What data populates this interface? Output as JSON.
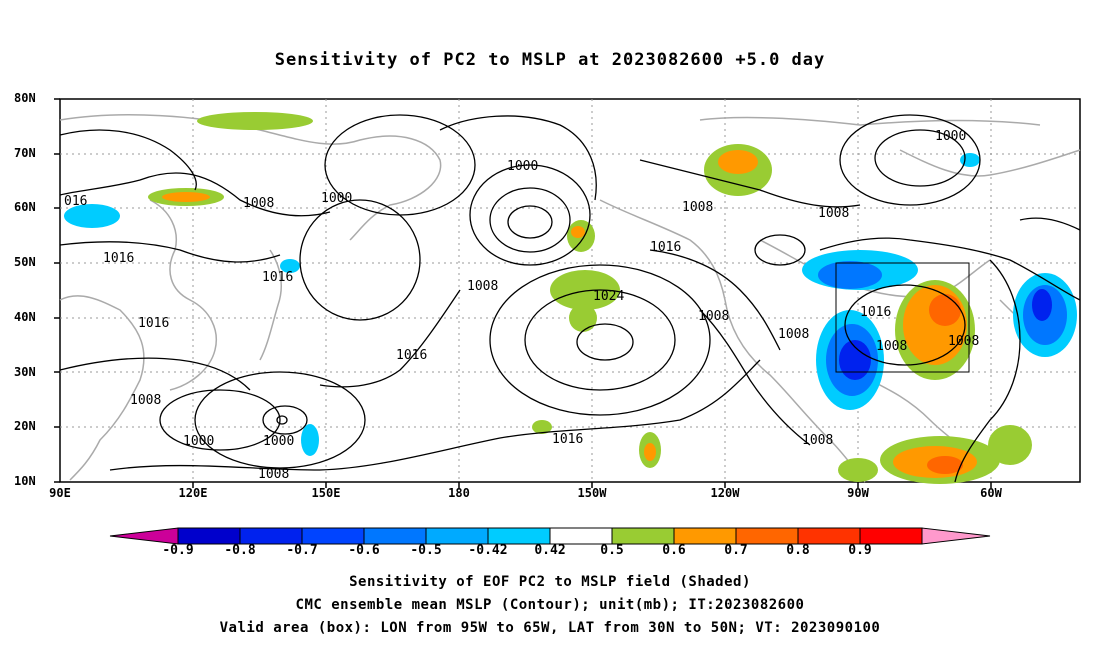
{
  "title": "Sensitivity of PC2 to MSLP at 2023082600 +5.0 day",
  "lat_labels": [
    "80N",
    "70N",
    "60N",
    "50N",
    "40N",
    "30N",
    "20N",
    "10N"
  ],
  "lon_labels": [
    "90E",
    "120E",
    "150E",
    "180",
    "150W",
    "120W",
    "90W",
    "60W"
  ],
  "colorbar": {
    "labels": [
      "-0.9",
      "-0.8",
      "-0.7",
      "-0.6",
      "-0.5",
      "-0.42",
      "0.42",
      "0.5",
      "0.6",
      "0.7",
      "0.8",
      "0.9"
    ],
    "colors": [
      "#cc0099",
      "#0000cc",
      "#0022ee",
      "#0044ff",
      "#0077ff",
      "#00aaff",
      "#00ccff",
      "#ffffff",
      "#99cc33",
      "#ff9900",
      "#ff6600",
      "#ff3300",
      "#ff0000",
      "#ff99cc"
    ]
  },
  "contour_labels": [
    "1000",
    "1008",
    "1016",
    "1024",
    "016"
  ],
  "captions": [
    "Sensitivity of EOF PC2 to MSLP field (Shaded)",
    "CMC ensemble mean MSLP (Contour); unit(mb); IT:2023082600",
    "Valid area (box): LON from 95W to 65W, LAT from 30N to 50N; VT: 2023090100"
  ]
}
